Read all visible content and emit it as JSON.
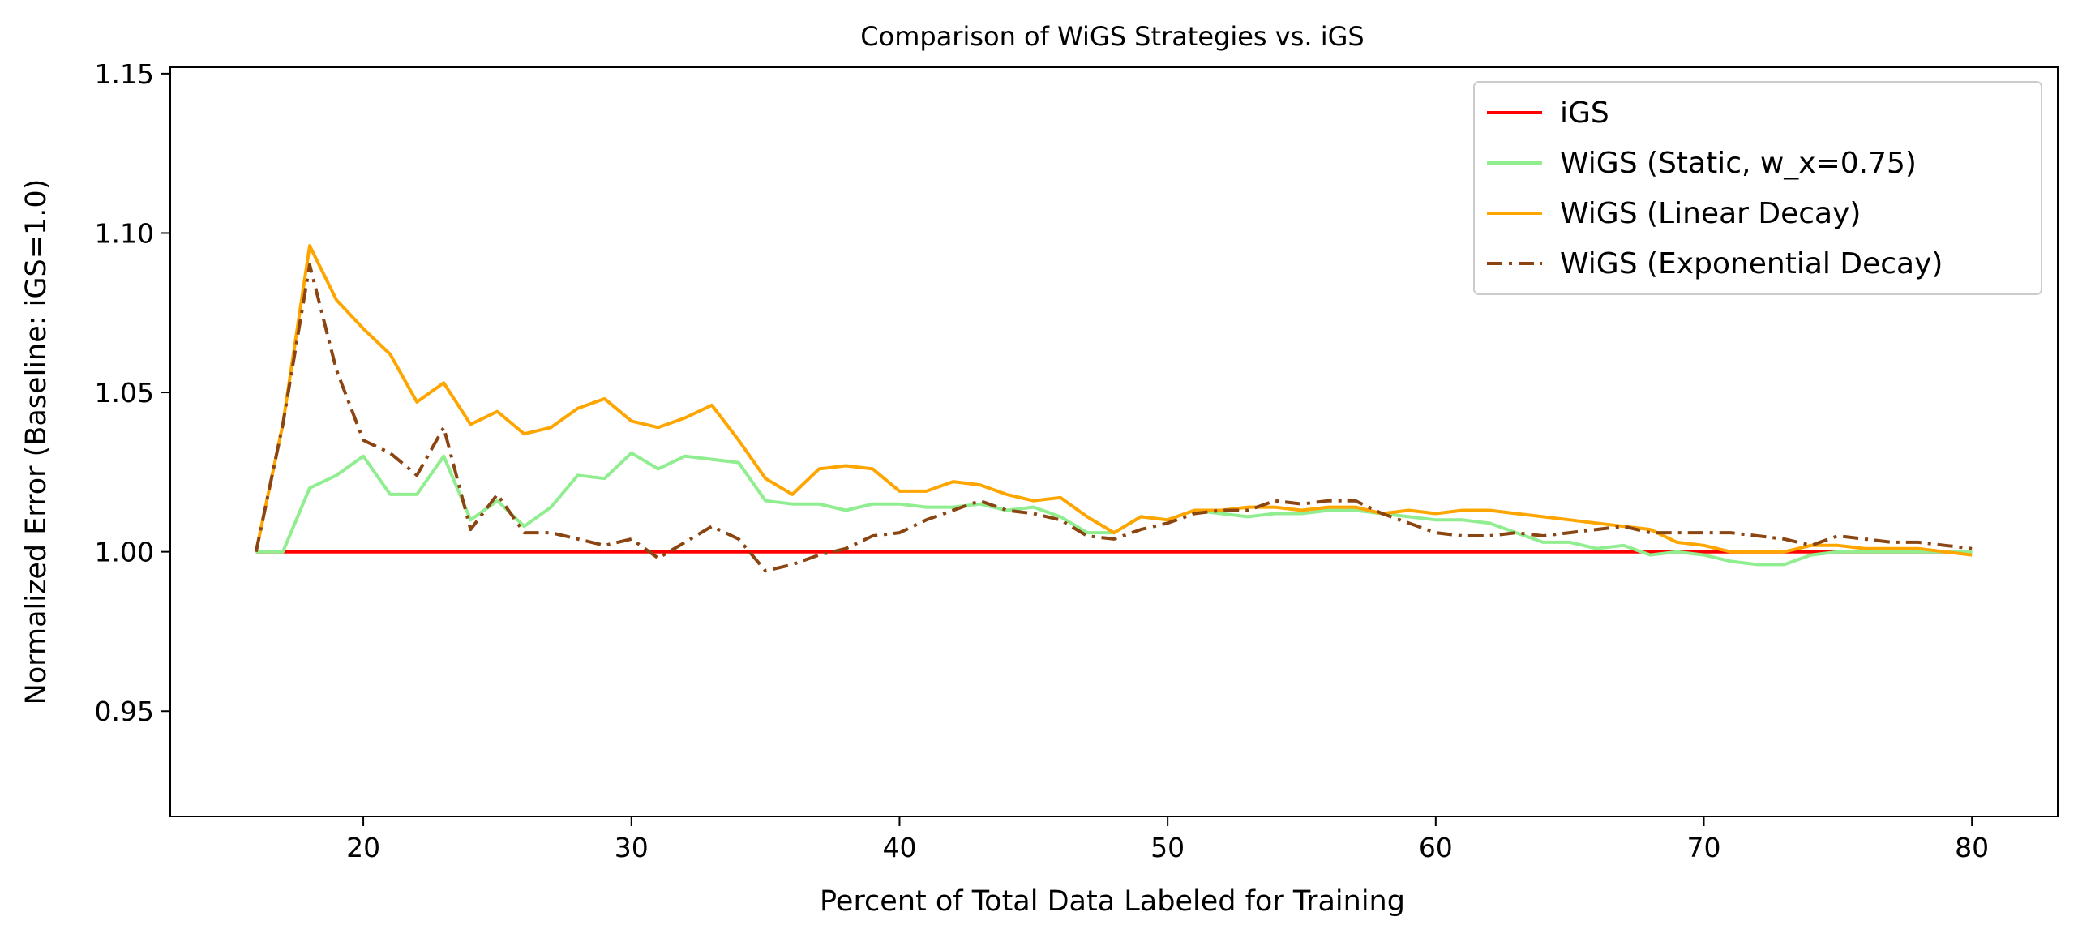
{
  "chart_data": {
    "type": "line",
    "title": "Comparison of WiGS Strategies vs. iGS",
    "xlabel": "Percent of Total Data Labeled for Training",
    "ylabel": "Normalized Error (Baseline: iGS=1.0)",
    "xlim": [
      12.8,
      83.2
    ],
    "ylim": [
      0.917,
      1.152
    ],
    "xticks": [
      20,
      30,
      40,
      50,
      60,
      70,
      80
    ],
    "xtick_labels": [
      "20",
      "30",
      "40",
      "50",
      "60",
      "70",
      "80"
    ],
    "yticks": [
      0.95,
      1.0,
      1.05,
      1.1,
      1.15
    ],
    "ytick_labels": [
      "0.95",
      "1.00",
      "1.05",
      "1.10",
      "1.15"
    ],
    "grid": false,
    "legend_position": "top-right",
    "series": [
      {
        "name": "iGS",
        "color": "#ff0000",
        "style": "solid",
        "x": [
          16,
          80
        ],
        "y": [
          1.0,
          1.0
        ]
      },
      {
        "name": "WiGS (Static, w_x=0.75)",
        "color": "#90ee90",
        "style": "solid",
        "x": [
          16,
          17,
          18,
          19,
          20,
          21,
          22,
          23,
          24,
          25,
          26,
          27,
          28,
          29,
          30,
          31,
          32,
          33,
          34,
          35,
          36,
          37,
          38,
          39,
          40,
          41,
          42,
          43,
          44,
          45,
          46,
          47,
          48,
          49,
          50,
          51,
          52,
          53,
          54,
          55,
          56,
          57,
          58,
          59,
          60,
          61,
          62,
          63,
          64,
          65,
          66,
          67,
          68,
          69,
          70,
          71,
          72,
          73,
          74,
          75,
          76,
          77,
          78,
          79,
          80
        ],
        "y": [
          1.0,
          1.0,
          1.02,
          1.024,
          1.03,
          1.018,
          1.018,
          1.03,
          1.01,
          1.016,
          1.008,
          1.014,
          1.024,
          1.023,
          1.031,
          1.026,
          1.03,
          1.029,
          1.028,
          1.016,
          1.015,
          1.015,
          1.013,
          1.015,
          1.015,
          1.014,
          1.014,
          1.015,
          1.013,
          1.014,
          1.011,
          1.006,
          1.006,
          1.011,
          1.01,
          1.013,
          1.012,
          1.011,
          1.012,
          1.012,
          1.013,
          1.013,
          1.012,
          1.011,
          1.01,
          1.01,
          1.009,
          1.006,
          1.003,
          1.003,
          1.001,
          1.002,
          0.999,
          1.0,
          0.999,
          0.997,
          0.996,
          0.996,
          0.999,
          1.0,
          1.0,
          1.0,
          1.0,
          1.0,
          1.0
        ]
      },
      {
        "name": "WiGS (Linear Decay)",
        "color": "#ffa500",
        "style": "solid",
        "x": [
          16,
          17,
          18,
          19,
          20,
          21,
          22,
          23,
          24,
          25,
          26,
          27,
          28,
          29,
          30,
          31,
          32,
          33,
          34,
          35,
          36,
          37,
          38,
          39,
          40,
          41,
          42,
          43,
          44,
          45,
          46,
          47,
          48,
          49,
          50,
          51,
          52,
          53,
          54,
          55,
          56,
          57,
          58,
          59,
          60,
          61,
          62,
          63,
          64,
          65,
          66,
          67,
          68,
          69,
          70,
          71,
          72,
          73,
          74,
          75,
          76,
          77,
          78,
          79,
          80
        ],
        "y": [
          1.0,
          1.04,
          1.096,
          1.079,
          1.07,
          1.062,
          1.047,
          1.053,
          1.04,
          1.044,
          1.037,
          1.039,
          1.045,
          1.048,
          1.041,
          1.039,
          1.042,
          1.046,
          1.035,
          1.023,
          1.018,
          1.026,
          1.027,
          1.026,
          1.019,
          1.019,
          1.022,
          1.021,
          1.018,
          1.016,
          1.017,
          1.011,
          1.006,
          1.011,
          1.01,
          1.013,
          1.013,
          1.014,
          1.014,
          1.013,
          1.014,
          1.014,
          1.012,
          1.013,
          1.012,
          1.013,
          1.013,
          1.012,
          1.011,
          1.01,
          1.009,
          1.008,
          1.007,
          1.003,
          1.002,
          1.0,
          1.0,
          1.0,
          1.002,
          1.002,
          1.001,
          1.001,
          1.001,
          1.0,
          0.999
        ]
      },
      {
        "name": "WiGS (Exponential Decay)",
        "color": "#8b4513",
        "style": "dashdot",
        "x": [
          16,
          17,
          18,
          19,
          20,
          21,
          22,
          23,
          24,
          25,
          26,
          27,
          28,
          29,
          30,
          31,
          32,
          33,
          34,
          35,
          36,
          37,
          38,
          39,
          40,
          41,
          42,
          43,
          44,
          45,
          46,
          47,
          48,
          49,
          50,
          51,
          52,
          53,
          54,
          55,
          56,
          57,
          58,
          59,
          60,
          61,
          62,
          63,
          64,
          65,
          66,
          67,
          68,
          69,
          70,
          71,
          72,
          73,
          74,
          75,
          76,
          77,
          78,
          79,
          80
        ],
        "y": [
          1.0,
          1.04,
          1.09,
          1.057,
          1.035,
          1.031,
          1.024,
          1.039,
          1.007,
          1.018,
          1.006,
          1.006,
          1.004,
          1.002,
          1.004,
          0.998,
          1.003,
          1.008,
          1.004,
          0.994,
          0.996,
          0.999,
          1.001,
          1.005,
          1.006,
          1.01,
          1.013,
          1.016,
          1.013,
          1.012,
          1.01,
          1.005,
          1.004,
          1.007,
          1.009,
          1.012,
          1.013,
          1.013,
          1.016,
          1.015,
          1.016,
          1.016,
          1.012,
          1.009,
          1.006,
          1.005,
          1.005,
          1.006,
          1.005,
          1.006,
          1.007,
          1.008,
          1.006,
          1.006,
          1.006,
          1.006,
          1.005,
          1.004,
          1.002,
          1.005,
          1.004,
          1.003,
          1.003,
          1.002,
          1.001
        ]
      }
    ]
  }
}
